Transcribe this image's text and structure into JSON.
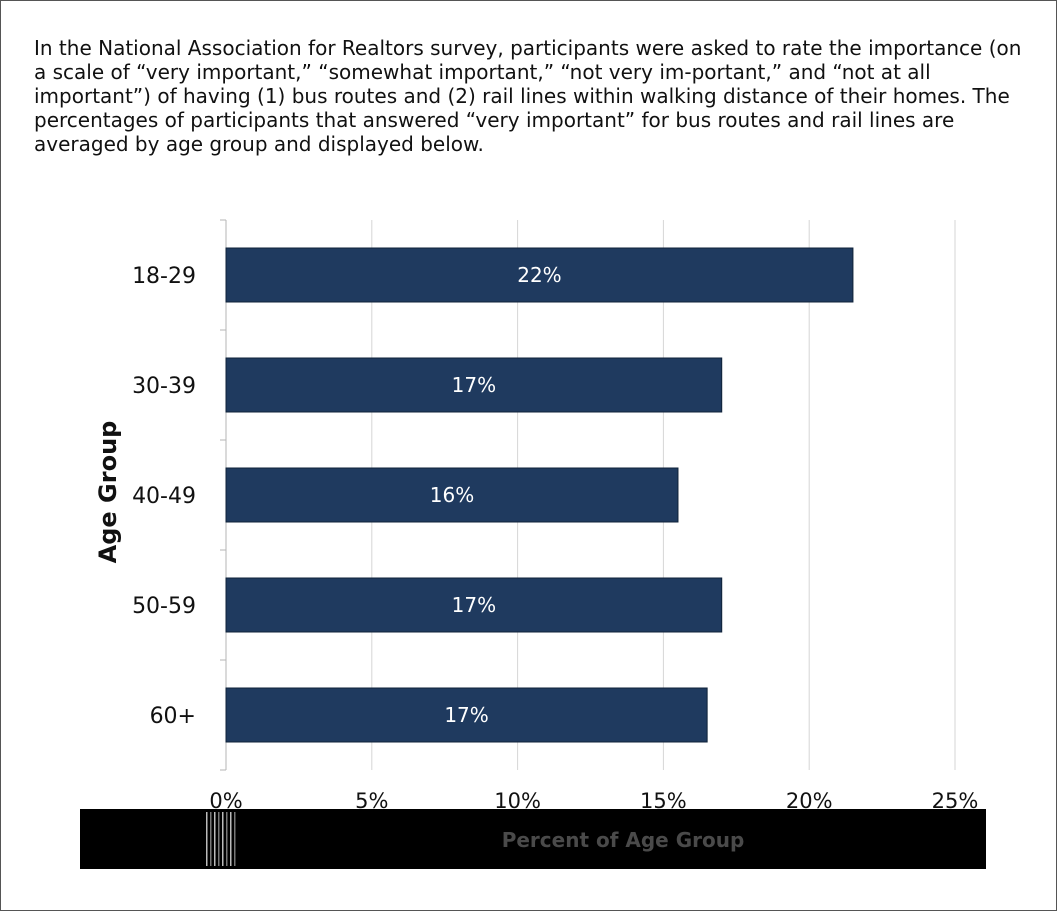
{
  "intro_text": "In the National Association for Realtors survey, participants were asked to rate the importance (on a scale of “very important,” “somewhat important,” “not very im-portant,” and “not at all important”) of having (1) bus routes and (2) rail lines within walking distance of their homes. The percentages of participants that answered “very important” for bus routes and rail lines are averaged by age group and displayed below.",
  "chart_data": {
    "type": "bar",
    "orientation": "horizontal",
    "categories": [
      "18-29",
      "30-39",
      "40-49",
      "50-59",
      "60+"
    ],
    "values": [
      21.5,
      17,
      15.5,
      17,
      16.5
    ],
    "data_labels": [
      "22%",
      "17%",
      "16%",
      "17%",
      "17%"
    ],
    "xlabel": "Percent of Age Group",
    "ylabel": "Age Group",
    "x_ticks": [
      "0%",
      "5%",
      "10%",
      "15%",
      "20%",
      "25%"
    ],
    "xlim": [
      0,
      25
    ],
    "grid": "vertical",
    "bar_color": "#1f3a5f",
    "label_color": "#ffffff"
  }
}
